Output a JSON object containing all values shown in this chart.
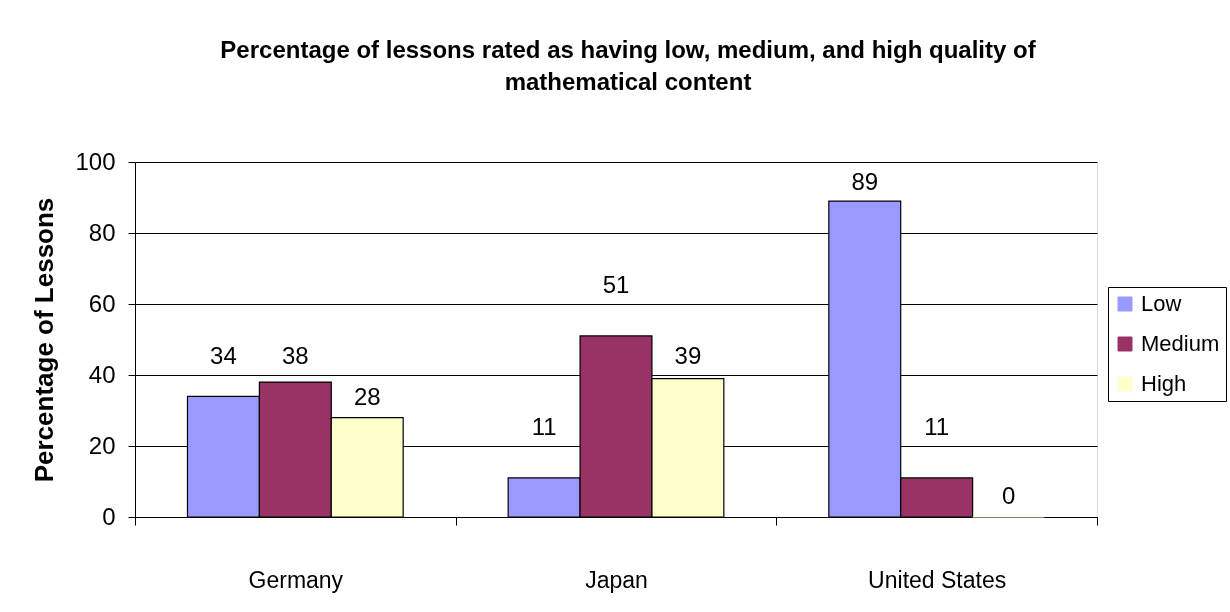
{
  "chart_data": {
    "type": "bar",
    "title": "Percentage of lessons rated as having low, medium, and high quality of mathematical content",
    "ylabel": "Percentage of Lessons",
    "categories": [
      "Germany",
      "Japan",
      "United States"
    ],
    "series": [
      {
        "name": "Low",
        "color": "#9999ff",
        "values": [
          34,
          11,
          89
        ]
      },
      {
        "name": "Medium",
        "color": "#993366",
        "values": [
          38,
          51,
          11
        ]
      },
      {
        "name": "High",
        "color": "#ffffcc",
        "values": [
          28,
          39,
          0
        ]
      }
    ],
    "ylim": [
      0,
      100
    ],
    "yticks": [
      0,
      20,
      40,
      60,
      80,
      100
    ],
    "grid": "y",
    "legend": "right",
    "data_labels": true
  }
}
